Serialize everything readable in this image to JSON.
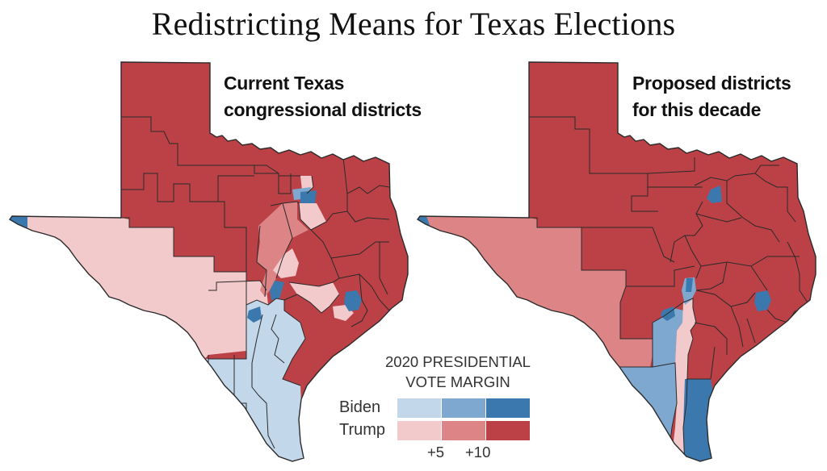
{
  "title": "Redistricting Means for Texas Elections",
  "maps": [
    {
      "id": "current",
      "label_lines": [
        "Current Texas",
        "congressional districts"
      ]
    },
    {
      "id": "proposed",
      "label_lines": [
        "Proposed districts",
        "for this decade"
      ]
    }
  ],
  "legend": {
    "title_lines": [
      "2020 PRESIDENTIAL",
      "VOTE MARGIN"
    ],
    "rows": [
      {
        "label": "Biden",
        "colors": [
          "#c3d7ea",
          "#7fa8d0",
          "#3b78ad"
        ]
      },
      {
        "label": "Trump",
        "colors": [
          "#f2cacc",
          "#dd8586",
          "#bc4147"
        ]
      }
    ],
    "ticks": [
      "+5",
      "+10"
    ]
  },
  "colors": {
    "biden_light": "#c3d7ea",
    "biden_mid": "#7fa8d0",
    "biden_strong": "#3b78ad",
    "trump_light": "#f2cacc",
    "trump_mid": "#dd8586",
    "trump_strong": "#bc4147",
    "border": "#2a2a2a"
  }
}
